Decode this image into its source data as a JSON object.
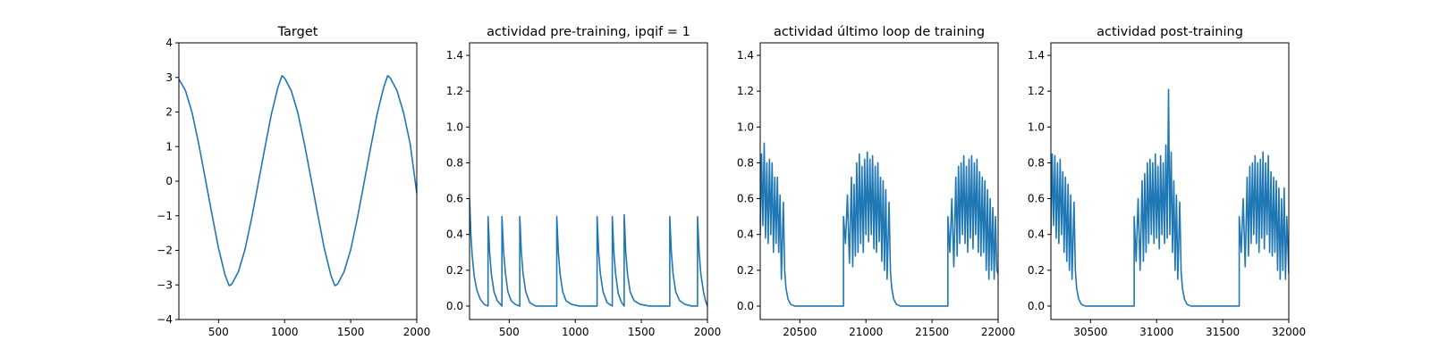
{
  "figure": {
    "background": "#ffffff",
    "line_color": "#1f77b4"
  },
  "chart_data": [
    {
      "type": "line",
      "title": "Target",
      "xlim": [
        200,
        2000
      ],
      "ylim": [
        -4,
        4
      ],
      "xticks": [
        500,
        1000,
        1500,
        2000
      ],
      "yticks": [
        -4,
        -3,
        -2,
        -1,
        0,
        1,
        2,
        3,
        4
      ],
      "xtick_labels": [
        "500",
        "1000",
        "1500",
        "2000"
      ],
      "ytick_labels": [
        "−4",
        "−3",
        "−2",
        "−1",
        "0",
        "1",
        "2",
        "3",
        "4"
      ],
      "series": [
        {
          "x": [
            200,
            250,
            300,
            350,
            400,
            450,
            500,
            550,
            580,
            600,
            650,
            700,
            750,
            800,
            850,
            900,
            950,
            980,
            1000,
            1050,
            1100,
            1150,
            1200,
            1250,
            1300,
            1350,
            1380,
            1400,
            1450,
            1500,
            1550,
            1600,
            1650,
            1700,
            1750,
            1780,
            1800,
            1850,
            1900,
            1950,
            2000
          ],
          "y": [
            2.95,
            2.62,
            1.98,
            1.08,
            0.07,
            -0.95,
            -1.94,
            -2.72,
            -3.02,
            -2.98,
            -2.62,
            -1.98,
            -1.08,
            -0.07,
            0.95,
            1.94,
            2.72,
            3.05,
            2.98,
            2.62,
            1.98,
            1.08,
            0.07,
            -0.95,
            -1.94,
            -2.72,
            -3.02,
            -2.98,
            -2.62,
            -1.98,
            -1.08,
            -0.07,
            0.95,
            1.94,
            2.72,
            3.05,
            2.98,
            2.62,
            1.98,
            1.08,
            -0.35
          ]
        }
      ]
    },
    {
      "type": "line",
      "title": "actividad pre-training, ipqif = 1",
      "xlim": [
        200,
        2000
      ],
      "ylim": [
        -0.075,
        1.47
      ],
      "xticks": [
        500,
        1000,
        1500,
        2000
      ],
      "yticks": [
        0.0,
        0.2,
        0.4,
        0.6,
        0.8,
        1.0,
        1.2,
        1.4
      ],
      "xtick_labels": [
        "500",
        "1000",
        "1500",
        "2000"
      ],
      "ytick_labels": [
        "0.0",
        "0.2",
        "0.4",
        "0.6",
        "0.8",
        "1.0",
        "1.2",
        "1.4"
      ],
      "series": [
        {
          "x": [
            200,
            210,
            220,
            235,
            255,
            280,
            310,
            340,
            340,
            352,
            365,
            385,
            410,
            445,
            445,
            458,
            472,
            490,
            515,
            545,
            580,
            580,
            592,
            605,
            625,
            655,
            700,
            760,
            860,
            860,
            872,
            885,
            905,
            930,
            970,
            1030,
            1100,
            1165,
            1165,
            1177,
            1190,
            1210,
            1240,
            1280,
            1280,
            1292,
            1305,
            1325,
            1350,
            1370,
            1370,
            1382,
            1395,
            1415,
            1445,
            1490,
            1560,
            1640,
            1715,
            1715,
            1727,
            1740,
            1760,
            1790,
            1830,
            1880,
            1925,
            1925,
            1937,
            1950,
            1970,
            1985,
            2000
          ],
          "y": [
            0.6,
            0.4,
            0.28,
            0.17,
            0.09,
            0.04,
            0.01,
            0.0,
            0.5,
            0.3,
            0.18,
            0.08,
            0.03,
            0.0,
            0.5,
            0.3,
            0.18,
            0.08,
            0.03,
            0.01,
            0.0,
            0.5,
            0.3,
            0.18,
            0.08,
            0.02,
            0.0,
            0.0,
            0.0,
            0.5,
            0.3,
            0.18,
            0.08,
            0.03,
            0.01,
            0.0,
            0.0,
            0.0,
            0.5,
            0.3,
            0.18,
            0.08,
            0.02,
            0.0,
            0.5,
            0.3,
            0.18,
            0.07,
            0.02,
            0.0,
            0.51,
            0.3,
            0.18,
            0.08,
            0.03,
            0.01,
            0.0,
            0.0,
            0.0,
            0.5,
            0.3,
            0.18,
            0.08,
            0.03,
            0.01,
            0.0,
            0.0,
            0.5,
            0.3,
            0.18,
            0.08,
            0.03,
            0.0
          ]
        }
      ]
    },
    {
      "type": "line",
      "title": "actividad último loop de training",
      "xlim": [
        20200,
        22000
      ],
      "ylim": [
        -0.075,
        1.47
      ],
      "xticks": [
        20500,
        21000,
        21500,
        22000
      ],
      "yticks": [
        0.0,
        0.2,
        0.4,
        0.6,
        0.8,
        1.0,
        1.2,
        1.4
      ],
      "xtick_labels": [
        "20500",
        "21000",
        "21500",
        "22000"
      ],
      "ytick_labels": [
        "0.0",
        "0.2",
        "0.4",
        "0.6",
        "0.8",
        "1.0",
        "1.2",
        "1.4"
      ],
      "series": [
        {
          "x": [
            20200,
            20210,
            20220,
            20230,
            20240,
            20250,
            20260,
            20270,
            20280,
            20290,
            20300,
            20310,
            20320,
            20330,
            20340,
            20350,
            20360,
            20375,
            20385,
            20395,
            20410,
            20430,
            20460,
            20500,
            20560,
            20650,
            20760,
            20830,
            20830,
            20845,
            20860,
            20875,
            20890,
            20900,
            20910,
            20920,
            20930,
            20940,
            20950,
            20960,
            20970,
            20980,
            20990,
            21000,
            21010,
            21020,
            21030,
            21040,
            21050,
            21060,
            21070,
            21080,
            21090,
            21100,
            21110,
            21120,
            21130,
            21140,
            21150,
            21160,
            21175,
            21185,
            21195,
            21210,
            21230,
            21260,
            21300,
            21360,
            21450,
            21560,
            21620,
            21620,
            21635,
            21650,
            21665,
            21680,
            21690,
            21700,
            21710,
            21720,
            21730,
            21740,
            21750,
            21760,
            21770,
            21780,
            21790,
            21800,
            21810,
            21820,
            21830,
            21840,
            21850,
            21860,
            21870,
            21880,
            21890,
            21900,
            21910,
            21920,
            21930,
            21940,
            21950,
            21960,
            21970,
            21980,
            21990,
            22000
          ],
          "y": [
            0.4,
            0.85,
            0.45,
            0.91,
            0.38,
            0.8,
            0.35,
            0.82,
            0.4,
            0.8,
            0.3,
            0.72,
            0.35,
            0.72,
            0.3,
            0.62,
            0.15,
            0.58,
            0.2,
            0.1,
            0.04,
            0.01,
            0.0,
            0.0,
            0.0,
            0.0,
            0.0,
            0.0,
            0.5,
            0.35,
            0.62,
            0.24,
            0.72,
            0.22,
            0.68,
            0.28,
            0.8,
            0.3,
            0.85,
            0.35,
            0.78,
            0.3,
            0.82,
            0.4,
            0.86,
            0.36,
            0.82,
            0.4,
            0.84,
            0.32,
            0.78,
            0.3,
            0.8,
            0.36,
            0.72,
            0.25,
            0.7,
            0.2,
            0.65,
            0.15,
            0.58,
            0.2,
            0.1,
            0.04,
            0.01,
            0.0,
            0.0,
            0.0,
            0.0,
            0.0,
            0.0,
            0.5,
            0.3,
            0.6,
            0.22,
            0.72,
            0.28,
            0.78,
            0.35,
            0.8,
            0.4,
            0.84,
            0.35,
            0.78,
            0.3,
            0.82,
            0.38,
            0.84,
            0.32,
            0.8,
            0.4,
            0.82,
            0.3,
            0.75,
            0.28,
            0.72,
            0.3,
            0.7,
            0.2,
            0.65,
            0.15,
            0.6,
            0.2,
            0.55,
            0.15,
            0.5,
            0.2,
            0.18
          ]
        }
      ]
    },
    {
      "type": "line",
      "title": "actividad post-training",
      "xlim": [
        30200,
        32000
      ],
      "ylim": [
        -0.075,
        1.47
      ],
      "xticks": [
        30500,
        31000,
        31500,
        32000
      ],
      "yticks": [
        0.0,
        0.2,
        0.4,
        0.6,
        0.8,
        1.0,
        1.2,
        1.4
      ],
      "xtick_labels": [
        "30500",
        "31000",
        "31500",
        "32000"
      ],
      "ytick_labels": [
        "0.0",
        "0.2",
        "0.4",
        "0.6",
        "0.8",
        "1.0",
        "1.2",
        "1.4"
      ],
      "series": [
        {
          "x": [
            30200,
            30210,
            30220,
            30230,
            30240,
            30250,
            30260,
            30270,
            30280,
            30290,
            30300,
            30310,
            30320,
            30330,
            30340,
            30350,
            30360,
            30375,
            30385,
            30395,
            30410,
            30430,
            30460,
            30500,
            30560,
            30650,
            30760,
            30830,
            30830,
            30845,
            30860,
            30875,
            30890,
            30900,
            30910,
            30920,
            30930,
            30940,
            30950,
            30960,
            30970,
            30980,
            30990,
            31000,
            31010,
            31020,
            31030,
            31040,
            31050,
            31060,
            31070,
            31080,
            31090,
            31100,
            31110,
            31120,
            31130,
            31140,
            31150,
            31160,
            31175,
            31185,
            31195,
            31210,
            31230,
            31260,
            31300,
            31360,
            31450,
            31560,
            31625,
            31625,
            31640,
            31655,
            31670,
            31685,
            31695,
            31705,
            31715,
            31725,
            31735,
            31745,
            31755,
            31765,
            31775,
            31785,
            31795,
            31805,
            31815,
            31825,
            31835,
            31845,
            31855,
            31865,
            31875,
            31885,
            31895,
            31905,
            31915,
            31925,
            31935,
            31945,
            31955,
            31965,
            31975,
            31985,
            32000
          ],
          "y": [
            0.4,
            0.85,
            0.45,
            0.84,
            0.38,
            0.8,
            0.35,
            0.82,
            0.4,
            0.75,
            0.3,
            0.72,
            0.25,
            0.68,
            0.2,
            0.62,
            0.15,
            0.58,
            0.2,
            0.1,
            0.04,
            0.01,
            0.0,
            0.0,
            0.0,
            0.0,
            0.0,
            0.0,
            0.5,
            0.25,
            0.6,
            0.2,
            0.7,
            0.25,
            0.74,
            0.3,
            0.8,
            0.35,
            0.82,
            0.4,
            0.8,
            0.35,
            0.85,
            0.38,
            0.78,
            0.32,
            0.84,
            0.4,
            0.8,
            0.35,
            0.9,
            0.38,
            1.21,
            0.4,
            0.86,
            0.3,
            0.7,
            0.2,
            0.62,
            0.15,
            0.58,
            0.2,
            0.1,
            0.04,
            0.01,
            0.0,
            0.0,
            0.0,
            0.0,
            0.0,
            0.0,
            0.5,
            0.3,
            0.6,
            0.22,
            0.72,
            0.28,
            0.78,
            0.35,
            0.8,
            0.4,
            0.84,
            0.35,
            0.8,
            0.3,
            0.82,
            0.38,
            0.86,
            0.32,
            0.8,
            0.4,
            0.84,
            0.3,
            0.75,
            0.28,
            0.72,
            0.3,
            0.7,
            0.2,
            0.66,
            0.15,
            0.6,
            0.2,
            0.66,
            0.15,
            0.5,
            0.18
          ]
        }
      ]
    }
  ]
}
